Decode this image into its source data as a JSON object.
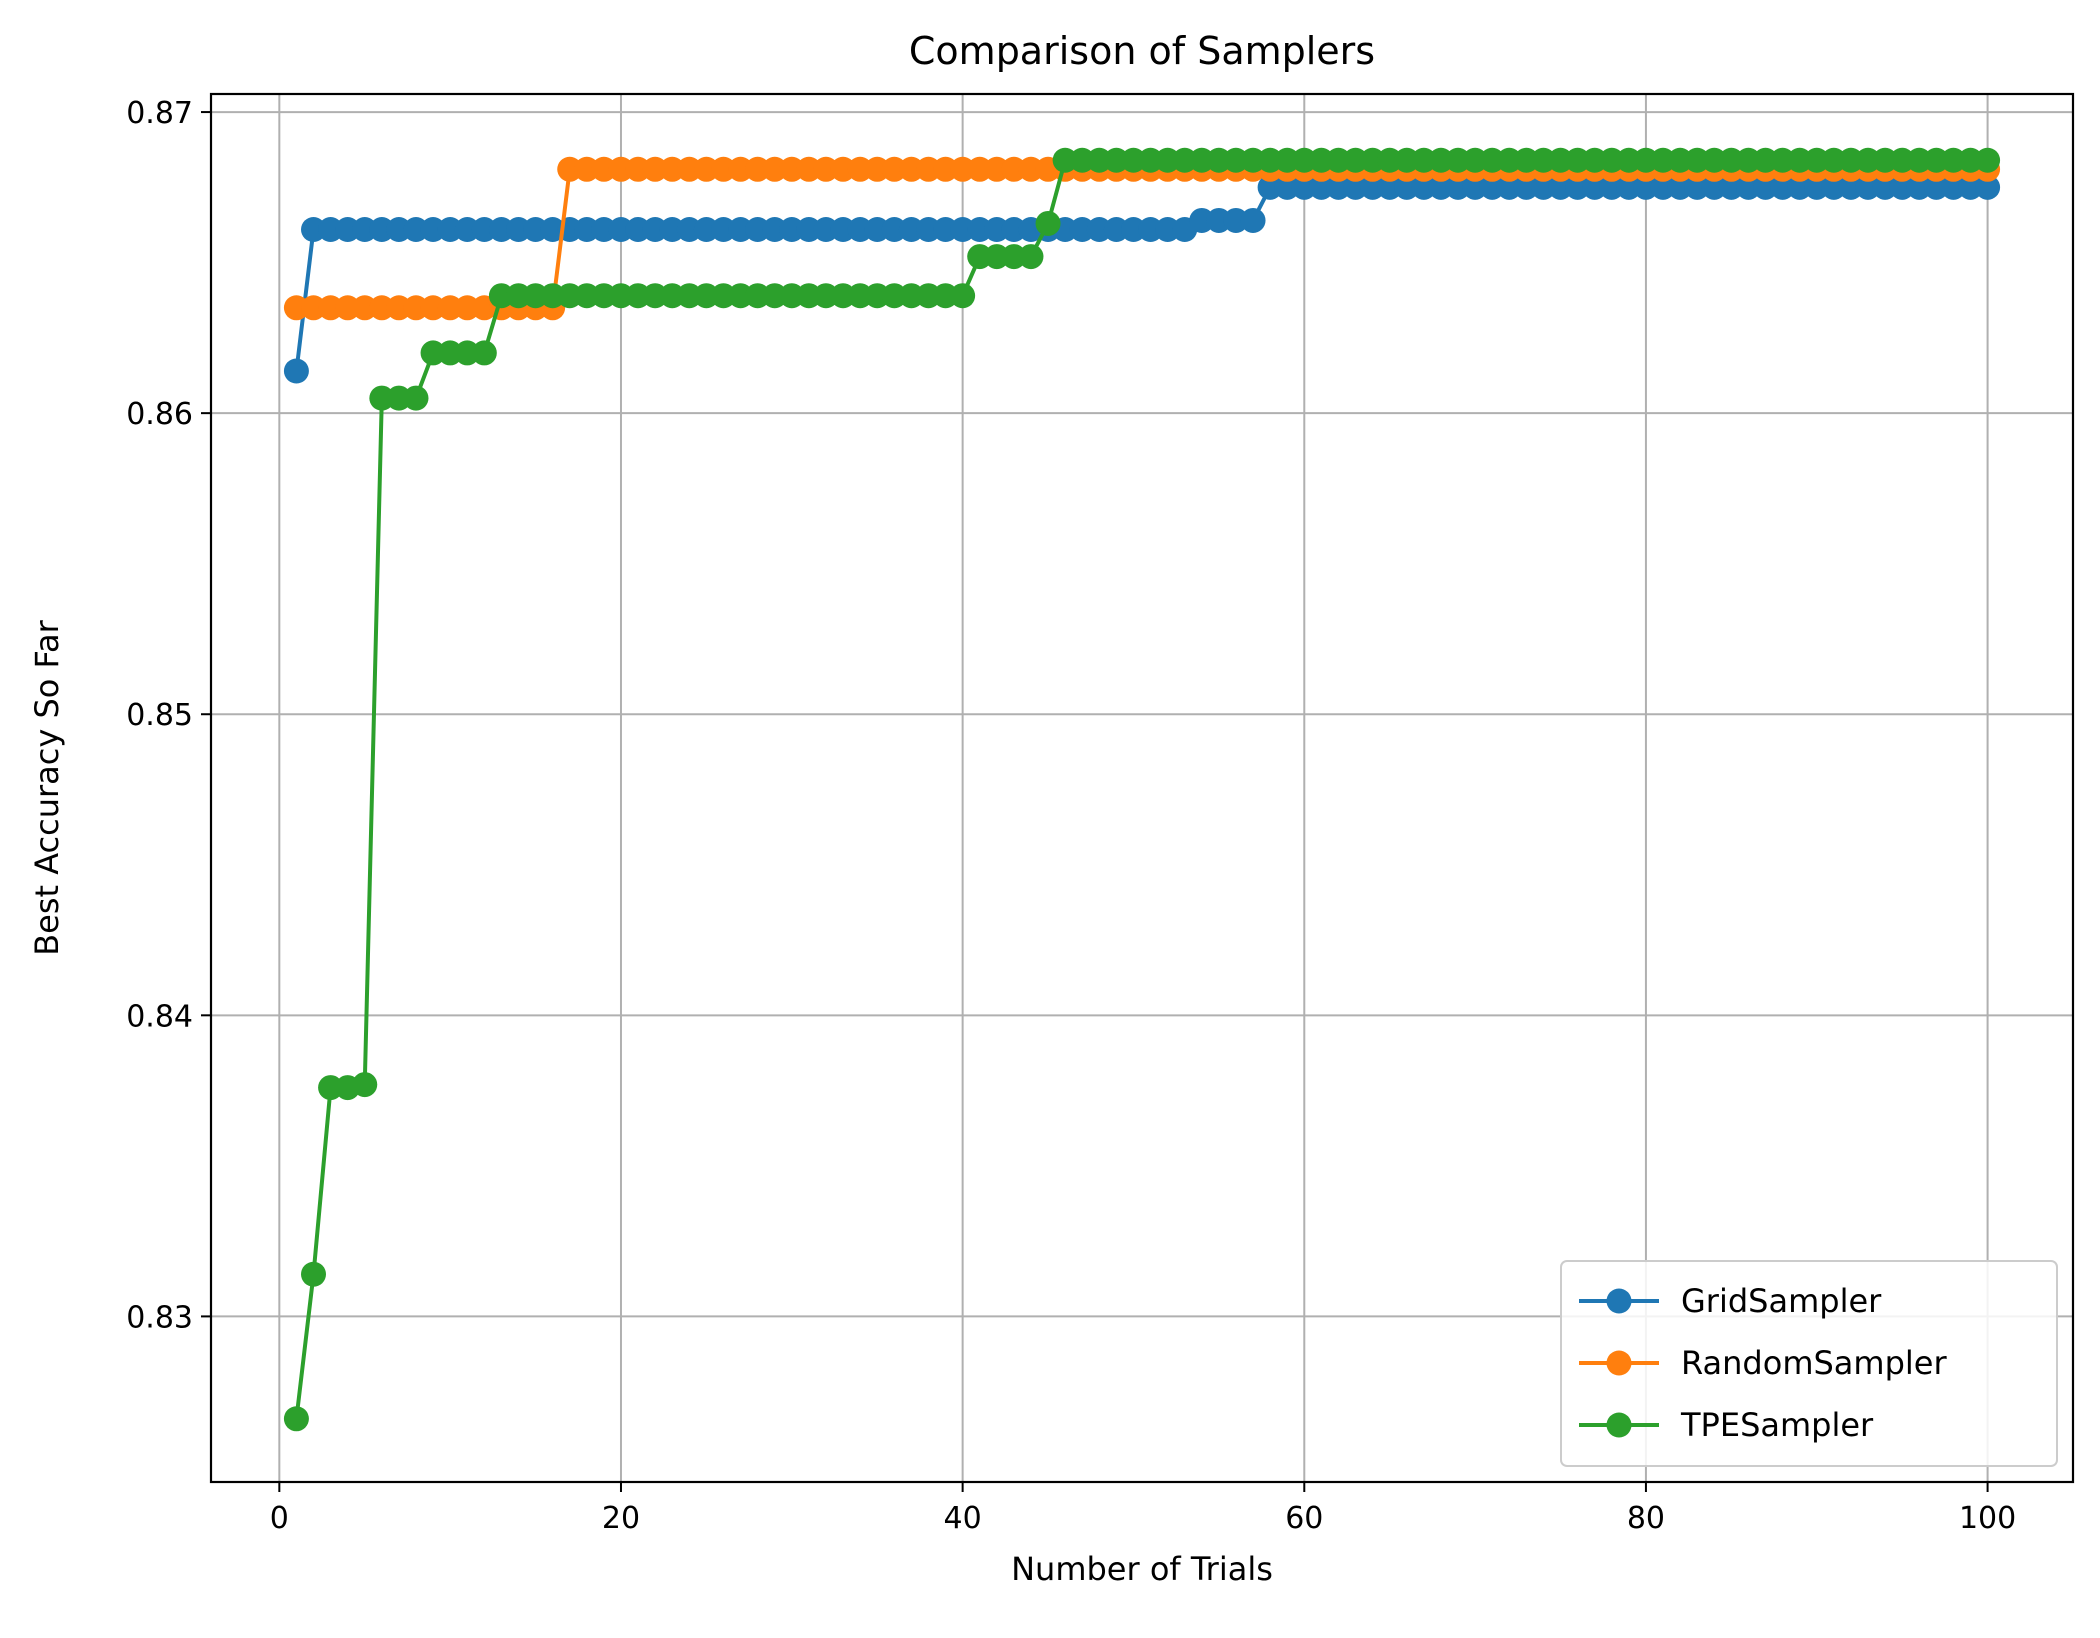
{
  "chart_data": {
    "type": "line",
    "title": "Comparison of Samplers",
    "xlabel": "Number of Trials",
    "ylabel": "Best Accuracy So Far",
    "xlim": [
      -4,
      105
    ],
    "ylim": [
      0.8245,
      0.8706
    ],
    "xticks": [
      0,
      20,
      40,
      60,
      80,
      100
    ],
    "yticks": [
      0.83,
      0.84,
      0.85,
      0.86,
      0.87
    ],
    "xtick_labels": [
      "0",
      "20",
      "40",
      "60",
      "80",
      "100"
    ],
    "ytick_labels": [
      "0.83",
      "0.84",
      "0.85",
      "0.86",
      "0.87"
    ],
    "grid": true,
    "legend_position": "lower-right",
    "marker": "circle",
    "series": [
      {
        "name": "GridSampler",
        "color": "#1f77b4",
        "segments": [
          {
            "from": 1,
            "to": 1,
            "value": 0.8614
          },
          {
            "from": 2,
            "to": 53,
            "value": 0.8661
          },
          {
            "from": 54,
            "to": 57,
            "value": 0.8664
          },
          {
            "from": 58,
            "to": 100,
            "value": 0.8675
          }
        ]
      },
      {
        "name": "RandomSampler",
        "color": "#ff7f0e",
        "segments": [
          {
            "from": 1,
            "to": 16,
            "value": 0.8635
          },
          {
            "from": 17,
            "to": 100,
            "value": 0.8681
          }
        ]
      },
      {
        "name": "TPESampler",
        "color": "#2ca02c",
        "segments": [
          {
            "from": 1,
            "to": 1,
            "value": 0.8266
          },
          {
            "from": 2,
            "to": 2,
            "value": 0.8314
          },
          {
            "from": 3,
            "to": 4,
            "value": 0.8376
          },
          {
            "from": 5,
            "to": 5,
            "value": 0.8377
          },
          {
            "from": 6,
            "to": 8,
            "value": 0.8605
          },
          {
            "from": 9,
            "to": 12,
            "value": 0.862
          },
          {
            "from": 13,
            "to": 40,
            "value": 0.8639
          },
          {
            "from": 41,
            "to": 44,
            "value": 0.8652
          },
          {
            "from": 45,
            "to": 45,
            "value": 0.8663
          },
          {
            "from": 46,
            "to": 100,
            "value": 0.8684
          }
        ]
      }
    ]
  }
}
